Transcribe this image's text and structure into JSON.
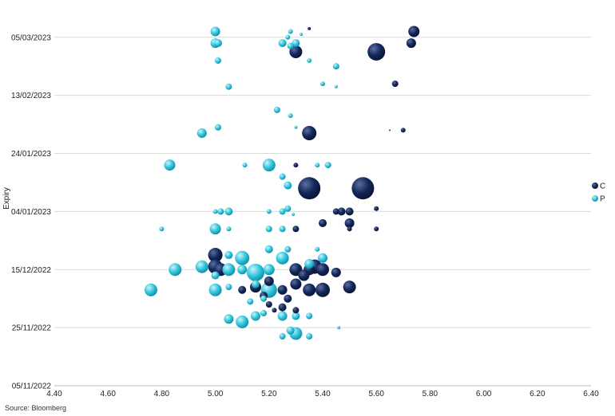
{
  "source": "Source: Bloomberg",
  "colors": {
    "C": "#14285c",
    "P": "#35c6de",
    "grid": "#d9d9d9"
  },
  "chart_data": {
    "type": "scatter",
    "subtype": "bubble",
    "xlabel": "",
    "ylabel": "Expiry",
    "xlim": [
      4.4,
      6.4
    ],
    "x_ticks": [
      "4.40",
      "4.60",
      "4.80",
      "5.00",
      "5.20",
      "5.40",
      "5.60",
      "5.80",
      "6.00",
      "6.20",
      "6.40"
    ],
    "y_ticks": [
      "05/11/2022",
      "25/11/2022",
      "15/12/2022",
      "04/01/2023",
      "24/01/2023",
      "13/02/2023",
      "05/03/2023"
    ],
    "ylim": [
      "2022-11-05",
      "2023-03-14"
    ],
    "grid": "horizontal",
    "legend": "right",
    "series": [
      {
        "name": "C",
        "points": [
          {
            "x": 5.35,
            "y": "2023-03-08",
            "s": 2
          },
          {
            "x": 5.74,
            "y": "2023-03-07",
            "s": 7
          },
          {
            "x": 5.73,
            "y": "2023-03-03",
            "s": 6
          },
          {
            "x": 5.3,
            "y": "2023-02-28",
            "s": 8
          },
          {
            "x": 5.6,
            "y": "2023-02-28",
            "s": 11
          },
          {
            "x": 5.67,
            "y": "2023-02-17",
            "s": 4
          },
          {
            "x": 5.7,
            "y": "2023-02-01",
            "s": 3
          },
          {
            "x": 5.65,
            "y": "2023-02-01",
            "s": 1
          },
          {
            "x": 5.35,
            "y": "2023-01-31",
            "s": 9
          },
          {
            "x": 5.3,
            "y": "2023-01-20",
            "s": 3
          },
          {
            "x": 5.35,
            "y": "2023-01-12",
            "s": 14
          },
          {
            "x": 5.55,
            "y": "2023-01-12",
            "s": 14
          },
          {
            "x": 5.45,
            "y": "2023-01-04",
            "s": 4
          },
          {
            "x": 5.47,
            "y": "2023-01-04",
            "s": 5
          },
          {
            "x": 5.5,
            "y": "2023-01-04",
            "s": 5
          },
          {
            "x": 5.6,
            "y": "2023-01-05",
            "s": 3
          },
          {
            "x": 5.4,
            "y": "2022-12-31",
            "s": 5
          },
          {
            "x": 5.5,
            "y": "2022-12-31",
            "s": 6
          },
          {
            "x": 5.5,
            "y": "2022-12-29",
            "s": 3
          },
          {
            "x": 5.6,
            "y": "2022-12-29",
            "s": 3
          },
          {
            "x": 5.3,
            "y": "2022-12-29",
            "s": 4
          },
          {
            "x": 5.0,
            "y": "2022-12-20",
            "s": 9
          },
          {
            "x": 5.0,
            "y": "2022-12-16",
            "s": 9
          },
          {
            "x": 5.02,
            "y": "2022-12-15",
            "s": 8
          },
          {
            "x": 5.3,
            "y": "2022-12-15",
            "s": 8
          },
          {
            "x": 5.35,
            "y": "2022-12-15",
            "s": 7
          },
          {
            "x": 5.37,
            "y": "2022-12-16",
            "s": 9
          },
          {
            "x": 5.4,
            "y": "2022-12-15",
            "s": 8
          },
          {
            "x": 5.33,
            "y": "2022-12-13",
            "s": 7
          },
          {
            "x": 5.45,
            "y": "2022-12-14",
            "s": 6
          },
          {
            "x": 5.5,
            "y": "2022-12-09",
            "s": 8
          },
          {
            "x": 5.4,
            "y": "2022-12-08",
            "s": 9
          },
          {
            "x": 5.35,
            "y": "2022-12-08",
            "s": 8
          },
          {
            "x": 5.3,
            "y": "2022-12-10",
            "s": 7
          },
          {
            "x": 5.25,
            "y": "2022-12-08",
            "s": 6
          },
          {
            "x": 5.15,
            "y": "2022-12-09",
            "s": 7
          },
          {
            "x": 5.2,
            "y": "2022-12-11",
            "s": 6
          },
          {
            "x": 5.18,
            "y": "2022-12-06",
            "s": 5
          },
          {
            "x": 5.1,
            "y": "2022-12-08",
            "s": 5
          },
          {
            "x": 5.25,
            "y": "2022-12-02",
            "s": 5
          },
          {
            "x": 5.22,
            "y": "2022-12-01",
            "s": 3
          },
          {
            "x": 5.3,
            "y": "2022-12-01",
            "s": 4
          },
          {
            "x": 5.2,
            "y": "2022-12-03",
            "s": 4
          },
          {
            "x": 5.27,
            "y": "2022-12-05",
            "s": 5
          }
        ]
      },
      {
        "name": "P",
        "points": [
          {
            "x": 5.0,
            "y": "2023-03-07",
            "s": 6
          },
          {
            "x": 5.0,
            "y": "2023-03-03",
            "s": 6
          },
          {
            "x": 5.01,
            "y": "2023-03-03",
            "s": 5
          },
          {
            "x": 5.25,
            "y": "2023-03-03",
            "s": 5
          },
          {
            "x": 5.28,
            "y": "2023-03-02",
            "s": 4
          },
          {
            "x": 5.3,
            "y": "2023-03-03",
            "s": 5
          },
          {
            "x": 5.28,
            "y": "2023-03-07",
            "s": 3
          },
          {
            "x": 5.32,
            "y": "2023-03-06",
            "s": 2
          },
          {
            "x": 5.27,
            "y": "2023-03-05",
            "s": 3
          },
          {
            "x": 5.01,
            "y": "2023-02-25",
            "s": 4
          },
          {
            "x": 5.35,
            "y": "2023-02-25",
            "s": 3
          },
          {
            "x": 5.45,
            "y": "2023-02-23",
            "s": 4
          },
          {
            "x": 5.05,
            "y": "2023-02-16",
            "s": 4
          },
          {
            "x": 5.4,
            "y": "2023-02-17",
            "s": 3
          },
          {
            "x": 5.45,
            "y": "2023-02-16",
            "s": 2
          },
          {
            "x": 5.23,
            "y": "2023-02-08",
            "s": 4
          },
          {
            "x": 5.28,
            "y": "2023-02-06",
            "s": 3
          },
          {
            "x": 5.01,
            "y": "2023-02-02",
            "s": 4
          },
          {
            "x": 4.95,
            "y": "2023-01-31",
            "s": 6
          },
          {
            "x": 5.3,
            "y": "2023-02-02",
            "s": 2
          },
          {
            "x": 4.83,
            "y": "2023-01-20",
            "s": 7
          },
          {
            "x": 5.11,
            "y": "2023-01-20",
            "s": 3
          },
          {
            "x": 5.2,
            "y": "2023-01-20",
            "s": 8
          },
          {
            "x": 5.38,
            "y": "2023-01-20",
            "s": 3
          },
          {
            "x": 5.42,
            "y": "2023-01-20",
            "s": 4
          },
          {
            "x": 5.25,
            "y": "2023-01-16",
            "s": 4
          },
          {
            "x": 5.27,
            "y": "2023-01-13",
            "s": 5
          },
          {
            "x": 5.0,
            "y": "2023-01-04",
            "s": 3
          },
          {
            "x": 5.02,
            "y": "2023-01-04",
            "s": 4
          },
          {
            "x": 5.05,
            "y": "2023-01-04",
            "s": 5
          },
          {
            "x": 5.2,
            "y": "2023-01-04",
            "s": 3
          },
          {
            "x": 5.25,
            "y": "2023-01-04",
            "s": 4
          },
          {
            "x": 5.27,
            "y": "2023-01-05",
            "s": 4
          },
          {
            "x": 5.29,
            "y": "2023-01-03",
            "s": 2
          },
          {
            "x": 4.8,
            "y": "2022-12-29",
            "s": 3
          },
          {
            "x": 5.0,
            "y": "2022-12-29",
            "s": 7
          },
          {
            "x": 5.05,
            "y": "2022-12-29",
            "s": 3
          },
          {
            "x": 5.2,
            "y": "2022-12-29",
            "s": 4
          },
          {
            "x": 5.25,
            "y": "2022-12-29",
            "s": 4
          },
          {
            "x": 5.05,
            "y": "2022-12-20",
            "s": 5
          },
          {
            "x": 5.1,
            "y": "2022-12-19",
            "s": 9
          },
          {
            "x": 5.25,
            "y": "2022-12-19",
            "s": 8
          },
          {
            "x": 5.2,
            "y": "2022-12-22",
            "s": 5
          },
          {
            "x": 5.27,
            "y": "2022-12-22",
            "s": 4
          },
          {
            "x": 5.4,
            "y": "2022-12-19",
            "s": 6
          },
          {
            "x": 5.38,
            "y": "2022-12-22",
            "s": 3
          },
          {
            "x": 4.85,
            "y": "2022-12-15",
            "s": 8
          },
          {
            "x": 4.95,
            "y": "2022-12-16",
            "s": 8
          },
          {
            "x": 5.05,
            "y": "2022-12-15",
            "s": 8
          },
          {
            "x": 5.1,
            "y": "2022-12-15",
            "s": 6
          },
          {
            "x": 5.15,
            "y": "2022-12-14",
            "s": 11
          },
          {
            "x": 5.2,
            "y": "2022-12-15",
            "s": 7
          },
          {
            "x": 5.35,
            "y": "2022-12-17",
            "s": 6
          },
          {
            "x": 5.0,
            "y": "2022-12-13",
            "s": 5
          },
          {
            "x": 4.76,
            "y": "2022-12-08",
            "s": 8
          },
          {
            "x": 5.0,
            "y": "2022-12-08",
            "s": 8
          },
          {
            "x": 5.05,
            "y": "2022-12-09",
            "s": 4
          },
          {
            "x": 5.15,
            "y": "2022-12-10",
            "s": 5
          },
          {
            "x": 5.2,
            "y": "2022-12-08",
            "s": 10
          },
          {
            "x": 5.18,
            "y": "2022-12-05",
            "s": 4
          },
          {
            "x": 5.13,
            "y": "2022-12-04",
            "s": 4
          },
          {
            "x": 5.05,
            "y": "2022-11-28",
            "s": 6
          },
          {
            "x": 5.1,
            "y": "2022-11-27",
            "s": 8
          },
          {
            "x": 5.15,
            "y": "2022-11-29",
            "s": 6
          },
          {
            "x": 5.18,
            "y": "2022-11-30",
            "s": 4
          },
          {
            "x": 5.25,
            "y": "2022-11-29",
            "s": 6
          },
          {
            "x": 5.3,
            "y": "2022-11-29",
            "s": 5
          },
          {
            "x": 5.35,
            "y": "2022-11-29",
            "s": 4
          },
          {
            "x": 5.28,
            "y": "2022-11-24",
            "s": 5
          },
          {
            "x": 5.3,
            "y": "2022-11-23",
            "s": 8
          },
          {
            "x": 5.25,
            "y": "2022-11-22",
            "s": 4
          },
          {
            "x": 5.35,
            "y": "2022-11-22",
            "s": 4
          },
          {
            "x": 5.46,
            "y": "2022-11-25",
            "s": 2
          }
        ]
      }
    ]
  }
}
